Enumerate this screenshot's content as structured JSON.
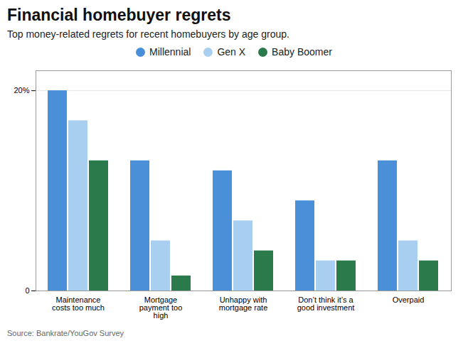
{
  "chart_data": {
    "type": "bar",
    "title": "Financial homebuyer regrets",
    "subtitle": "Top money-related regrets for recent homebuyers by age group.",
    "source": "Source: Bankrate/YouGov Survey",
    "categories": [
      "Maintenance\ncosts too much",
      "Mortgage\npayment too\nhigh",
      "Unhappy with\nmortgage rate",
      "Don’t think it’s a\ngood investment",
      "Overpaid"
    ],
    "series": [
      {
        "name": "Millennial",
        "color": "#4a90d9",
        "values": [
          20,
          13,
          12,
          9,
          13
        ]
      },
      {
        "name": "Gen X",
        "color": "#a8cff0",
        "values": [
          17,
          5,
          7,
          3,
          5
        ]
      },
      {
        "name": "Baby Boomer",
        "color": "#2a7a4b",
        "values": [
          13,
          1.5,
          4,
          3,
          3
        ]
      }
    ],
    "ylim": [
      0,
      22
    ],
    "yticks": [
      0,
      {
        "value": 20,
        "label": "20%"
      }
    ],
    "grid": true,
    "legend": "top"
  }
}
